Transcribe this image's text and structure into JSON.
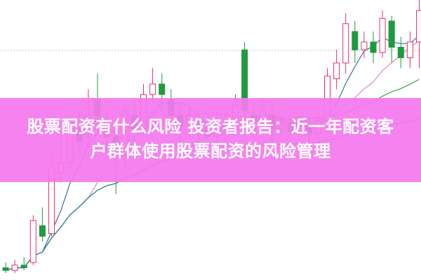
{
  "title": {
    "line1": "股票配资有什么风险 投资者报告：近一年配资客",
    "line2": "户群体使用股票配资的风险管理"
  },
  "colors": {
    "up": "#e8306a",
    "down": "#1f9a3c",
    "banner": "#f478ee",
    "ma_fast": "#3f6fa0",
    "ma_mid": "#d58ad0",
    "ma_slow": "#3aa048",
    "ma_long": "#2f7d8a"
  },
  "chart_data": {
    "type": "candlestick",
    "grid": "dotted horizontal",
    "candles": [
      [
        2,
        1,
        4,
        0
      ],
      [
        1,
        3,
        5,
        0
      ],
      [
        3,
        2,
        6,
        1
      ],
      [
        4,
        20,
        22,
        3
      ],
      [
        18,
        14,
        25,
        12
      ],
      [
        15,
        40,
        45,
        14
      ],
      [
        38,
        42,
        55,
        35
      ],
      [
        42,
        55,
        60,
        40
      ],
      [
        55,
        50,
        62,
        45
      ],
      [
        52,
        60,
        70,
        48
      ],
      [
        66,
        60,
        76,
        55
      ],
      [
        58,
        52,
        63,
        45
      ],
      [
        52,
        45,
        58,
        30
      ],
      [
        45,
        62,
        65,
        40
      ],
      [
        60,
        55,
        66,
        50
      ],
      [
        55,
        68,
        72,
        52
      ],
      [
        68,
        72,
        78,
        65
      ],
      [
        72,
        68,
        76,
        62
      ],
      [
        66,
        60,
        70,
        55
      ],
      [
        60,
        56,
        64,
        50
      ],
      [
        56,
        60,
        64,
        52
      ],
      [
        58,
        55,
        62,
        50
      ],
      [
        55,
        52,
        60,
        48
      ],
      [
        52,
        58,
        62,
        48
      ],
      [
        57,
        54,
        62,
        50
      ],
      [
        54,
        64,
        68,
        52
      ],
      [
        85,
        62,
        88,
        55
      ],
      [
        60,
        58,
        64,
        52
      ],
      [
        58,
        62,
        66,
        55
      ],
      [
        60,
        55,
        64,
        50
      ],
      [
        55,
        57,
        60,
        50
      ],
      [
        57,
        54,
        60,
        50
      ],
      [
        54,
        56,
        60,
        50
      ],
      [
        56,
        53,
        59,
        49
      ],
      [
        53,
        58,
        62,
        50
      ],
      [
        58,
        75,
        78,
        56
      ],
      [
        74,
        80,
        85,
        70
      ],
      [
        80,
        95,
        99,
        76
      ],
      [
        92,
        85,
        96,
        80
      ],
      [
        85,
        88,
        92,
        82
      ],
      [
        88,
        84,
        92,
        80
      ],
      [
        84,
        97,
        100,
        82
      ],
      [
        96,
        86,
        98,
        80
      ],
      [
        86,
        82,
        90,
        78
      ],
      [
        82,
        88,
        92,
        78
      ],
      [
        88,
        100,
        104,
        78
      ]
    ],
    "candle_fields": [
      "open",
      "close",
      "high",
      "low"
    ],
    "moving_averages": [
      5,
      10,
      20,
      60
    ]
  }
}
